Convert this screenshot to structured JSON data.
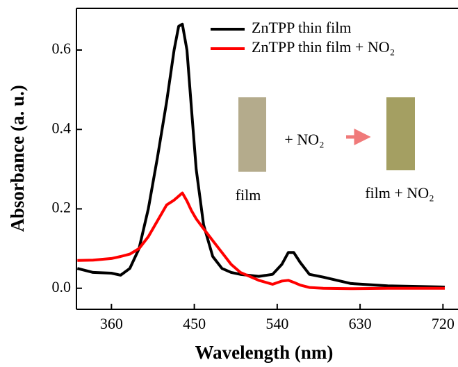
{
  "chart_data": {
    "type": "line",
    "xlabel": "Wavelength (nm)",
    "ylabel": "Absorbance (a. u.)",
    "x": [
      323,
      340,
      360,
      370,
      380,
      390,
      400,
      410,
      420,
      428,
      433,
      437,
      442,
      447,
      452,
      460,
      470,
      480,
      490,
      500,
      520,
      535,
      545,
      552,
      558,
      565,
      575,
      590,
      620,
      660,
      722
    ],
    "series": [
      {
        "name": "ZnTPP thin film",
        "color": "#000000",
        "values": [
          0.05,
          0.04,
          0.038,
          0.033,
          0.05,
          0.1,
          0.2,
          0.33,
          0.47,
          0.6,
          0.66,
          0.665,
          0.6,
          0.45,
          0.3,
          0.16,
          0.08,
          0.05,
          0.04,
          0.035,
          0.03,
          0.035,
          0.06,
          0.09,
          0.09,
          0.065,
          0.035,
          0.028,
          0.012,
          0.006,
          0.003
        ]
      },
      {
        "name": "ZnTPP thin film + NO₂",
        "color": "#ff0000",
        "values": [
          0.07,
          0.071,
          0.075,
          0.08,
          0.086,
          0.1,
          0.13,
          0.17,
          0.21,
          0.222,
          0.232,
          0.24,
          0.22,
          0.195,
          0.175,
          0.15,
          0.12,
          0.09,
          0.06,
          0.04,
          0.02,
          0.01,
          0.018,
          0.02,
          0.015,
          0.008,
          0.002,
          0.0,
          -0.001,
          0.0,
          0.0
        ]
      }
    ],
    "xlim": [
      322,
      722
    ],
    "ylim": [
      -0.053,
      0.705
    ],
    "xticks": [
      360,
      450,
      540,
      630,
      720
    ],
    "yticks": [
      {
        "value": 0,
        "label": "0.0"
      },
      0.2,
      0.4,
      0.6
    ],
    "legend": "upper right",
    "annotations": [
      "+ NO₂",
      "film",
      "film + NO₂"
    ]
  }
}
